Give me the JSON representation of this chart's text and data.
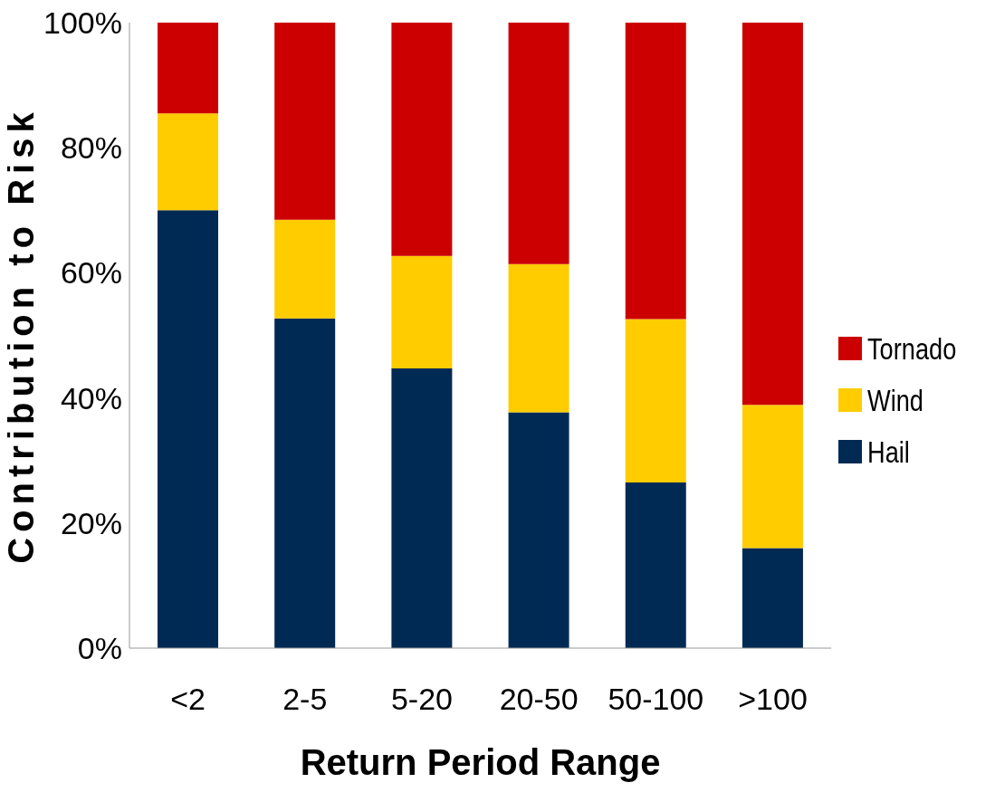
{
  "chart_data": {
    "type": "bar",
    "stacked": true,
    "xlabel": "Return Period Range",
    "ylabel": "Contribution to Risk",
    "categories": [
      "<2",
      "2-5",
      "5-20",
      "20-50",
      "50-100",
      ">100"
    ],
    "series": [
      {
        "name": "Hail",
        "color": "#002a54",
        "values": [
          70,
          52.7,
          44.7,
          37.7,
          26.5,
          16
        ]
      },
      {
        "name": "Wind",
        "color": "#ffcc00",
        "values": [
          15.5,
          15.8,
          18,
          23.7,
          26.1,
          22.9
        ]
      },
      {
        "name": "Tornado",
        "color": "#cc0000",
        "values": [
          14.5,
          31.5,
          37.3,
          38.6,
          47.4,
          61.1
        ]
      }
    ],
    "ylim": [
      0,
      100
    ],
    "yticks": [
      {
        "value": 0,
        "label": "0%"
      },
      {
        "value": 20,
        "label": "20%"
      },
      {
        "value": 40,
        "label": "40%"
      },
      {
        "value": 60,
        "label": "60%"
      },
      {
        "value": 80,
        "label": "80%"
      },
      {
        "value": 100,
        "label": "100%"
      }
    ],
    "grid": false,
    "legend": "right"
  }
}
